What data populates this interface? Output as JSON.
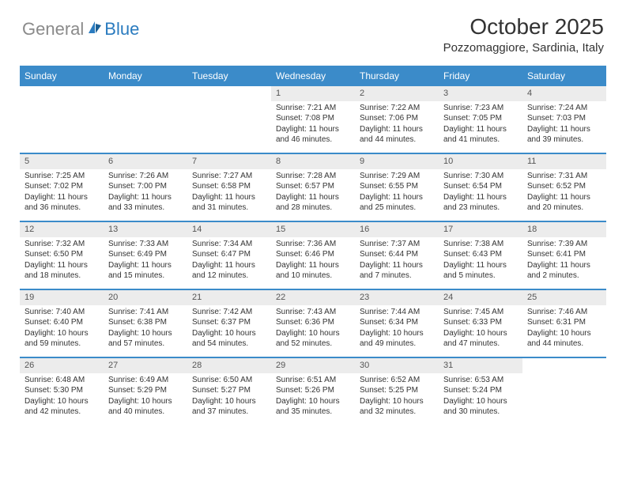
{
  "logo": {
    "gray": "General",
    "blue": "Blue"
  },
  "title": "October 2025",
  "location": "Pozzomaggiore, Sardinia, Italy",
  "colors": {
    "header_bg": "#3b8bc9",
    "daynum_bg": "#ececec",
    "logo_blue": "#2a7bbf",
    "logo_gray": "#8a8a8a"
  },
  "day_headers": [
    "Sunday",
    "Monday",
    "Tuesday",
    "Wednesday",
    "Thursday",
    "Friday",
    "Saturday"
  ],
  "weeks": [
    [
      {
        "n": "",
        "sr": "",
        "ss": "",
        "dl": ""
      },
      {
        "n": "",
        "sr": "",
        "ss": "",
        "dl": ""
      },
      {
        "n": "",
        "sr": "",
        "ss": "",
        "dl": ""
      },
      {
        "n": "1",
        "sr": "Sunrise: 7:21 AM",
        "ss": "Sunset: 7:08 PM",
        "dl": "Daylight: 11 hours and 46 minutes."
      },
      {
        "n": "2",
        "sr": "Sunrise: 7:22 AM",
        "ss": "Sunset: 7:06 PM",
        "dl": "Daylight: 11 hours and 44 minutes."
      },
      {
        "n": "3",
        "sr": "Sunrise: 7:23 AM",
        "ss": "Sunset: 7:05 PM",
        "dl": "Daylight: 11 hours and 41 minutes."
      },
      {
        "n": "4",
        "sr": "Sunrise: 7:24 AM",
        "ss": "Sunset: 7:03 PM",
        "dl": "Daylight: 11 hours and 39 minutes."
      }
    ],
    [
      {
        "n": "5",
        "sr": "Sunrise: 7:25 AM",
        "ss": "Sunset: 7:02 PM",
        "dl": "Daylight: 11 hours and 36 minutes."
      },
      {
        "n": "6",
        "sr": "Sunrise: 7:26 AM",
        "ss": "Sunset: 7:00 PM",
        "dl": "Daylight: 11 hours and 33 minutes."
      },
      {
        "n": "7",
        "sr": "Sunrise: 7:27 AM",
        "ss": "Sunset: 6:58 PM",
        "dl": "Daylight: 11 hours and 31 minutes."
      },
      {
        "n": "8",
        "sr": "Sunrise: 7:28 AM",
        "ss": "Sunset: 6:57 PM",
        "dl": "Daylight: 11 hours and 28 minutes."
      },
      {
        "n": "9",
        "sr": "Sunrise: 7:29 AM",
        "ss": "Sunset: 6:55 PM",
        "dl": "Daylight: 11 hours and 25 minutes."
      },
      {
        "n": "10",
        "sr": "Sunrise: 7:30 AM",
        "ss": "Sunset: 6:54 PM",
        "dl": "Daylight: 11 hours and 23 minutes."
      },
      {
        "n": "11",
        "sr": "Sunrise: 7:31 AM",
        "ss": "Sunset: 6:52 PM",
        "dl": "Daylight: 11 hours and 20 minutes."
      }
    ],
    [
      {
        "n": "12",
        "sr": "Sunrise: 7:32 AM",
        "ss": "Sunset: 6:50 PM",
        "dl": "Daylight: 11 hours and 18 minutes."
      },
      {
        "n": "13",
        "sr": "Sunrise: 7:33 AM",
        "ss": "Sunset: 6:49 PM",
        "dl": "Daylight: 11 hours and 15 minutes."
      },
      {
        "n": "14",
        "sr": "Sunrise: 7:34 AM",
        "ss": "Sunset: 6:47 PM",
        "dl": "Daylight: 11 hours and 12 minutes."
      },
      {
        "n": "15",
        "sr": "Sunrise: 7:36 AM",
        "ss": "Sunset: 6:46 PM",
        "dl": "Daylight: 11 hours and 10 minutes."
      },
      {
        "n": "16",
        "sr": "Sunrise: 7:37 AM",
        "ss": "Sunset: 6:44 PM",
        "dl": "Daylight: 11 hours and 7 minutes."
      },
      {
        "n": "17",
        "sr": "Sunrise: 7:38 AM",
        "ss": "Sunset: 6:43 PM",
        "dl": "Daylight: 11 hours and 5 minutes."
      },
      {
        "n": "18",
        "sr": "Sunrise: 7:39 AM",
        "ss": "Sunset: 6:41 PM",
        "dl": "Daylight: 11 hours and 2 minutes."
      }
    ],
    [
      {
        "n": "19",
        "sr": "Sunrise: 7:40 AM",
        "ss": "Sunset: 6:40 PM",
        "dl": "Daylight: 10 hours and 59 minutes."
      },
      {
        "n": "20",
        "sr": "Sunrise: 7:41 AM",
        "ss": "Sunset: 6:38 PM",
        "dl": "Daylight: 10 hours and 57 minutes."
      },
      {
        "n": "21",
        "sr": "Sunrise: 7:42 AM",
        "ss": "Sunset: 6:37 PM",
        "dl": "Daylight: 10 hours and 54 minutes."
      },
      {
        "n": "22",
        "sr": "Sunrise: 7:43 AM",
        "ss": "Sunset: 6:36 PM",
        "dl": "Daylight: 10 hours and 52 minutes."
      },
      {
        "n": "23",
        "sr": "Sunrise: 7:44 AM",
        "ss": "Sunset: 6:34 PM",
        "dl": "Daylight: 10 hours and 49 minutes."
      },
      {
        "n": "24",
        "sr": "Sunrise: 7:45 AM",
        "ss": "Sunset: 6:33 PM",
        "dl": "Daylight: 10 hours and 47 minutes."
      },
      {
        "n": "25",
        "sr": "Sunrise: 7:46 AM",
        "ss": "Sunset: 6:31 PM",
        "dl": "Daylight: 10 hours and 44 minutes."
      }
    ],
    [
      {
        "n": "26",
        "sr": "Sunrise: 6:48 AM",
        "ss": "Sunset: 5:30 PM",
        "dl": "Daylight: 10 hours and 42 minutes."
      },
      {
        "n": "27",
        "sr": "Sunrise: 6:49 AM",
        "ss": "Sunset: 5:29 PM",
        "dl": "Daylight: 10 hours and 40 minutes."
      },
      {
        "n": "28",
        "sr": "Sunrise: 6:50 AM",
        "ss": "Sunset: 5:27 PM",
        "dl": "Daylight: 10 hours and 37 minutes."
      },
      {
        "n": "29",
        "sr": "Sunrise: 6:51 AM",
        "ss": "Sunset: 5:26 PM",
        "dl": "Daylight: 10 hours and 35 minutes."
      },
      {
        "n": "30",
        "sr": "Sunrise: 6:52 AM",
        "ss": "Sunset: 5:25 PM",
        "dl": "Daylight: 10 hours and 32 minutes."
      },
      {
        "n": "31",
        "sr": "Sunrise: 6:53 AM",
        "ss": "Sunset: 5:24 PM",
        "dl": "Daylight: 10 hours and 30 minutes."
      },
      {
        "n": "",
        "sr": "",
        "ss": "",
        "dl": ""
      }
    ]
  ]
}
